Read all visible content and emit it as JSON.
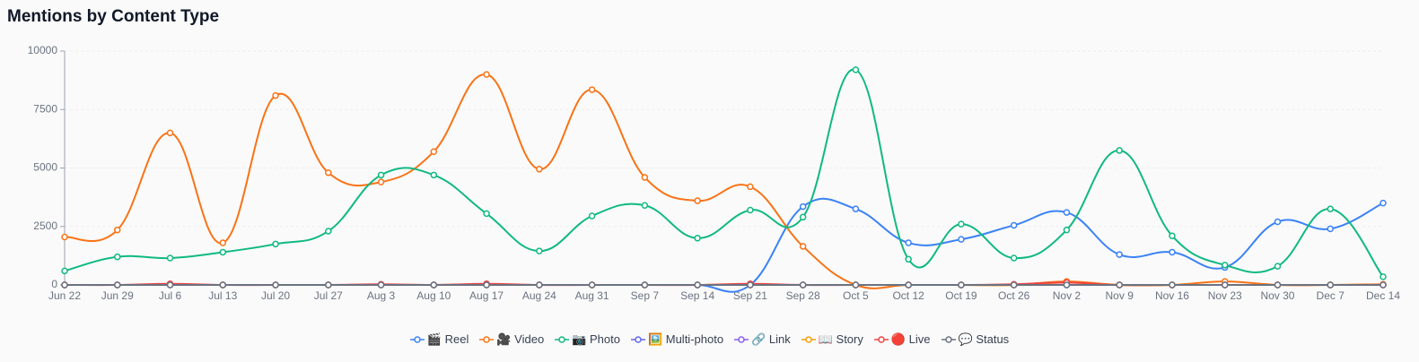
{
  "chart_data": {
    "type": "line",
    "title": "Mentions by Content Type",
    "categories": [
      "Jun 22",
      "Jun 29",
      "Jul 6",
      "Jul 13",
      "Jul 20",
      "Jul 27",
      "Aug 3",
      "Aug 10",
      "Aug 17",
      "Aug 24",
      "Aug 31",
      "Sep 7",
      "Sep 14",
      "Sep 21",
      "Sep 28",
      "Oct 5",
      "Oct 12",
      "Oct 19",
      "Oct 26",
      "Nov 2",
      "Nov 9",
      "Nov 16",
      "Nov 23",
      "Nov 30",
      "Dec 7",
      "Dec 14"
    ],
    "ylim": [
      0,
      10000
    ],
    "yticks": [
      0,
      2500,
      5000,
      7500,
      10000
    ],
    "grid": true,
    "legend": "bottom",
    "series": [
      {
        "name": "🎬 Reel",
        "color": "#3b82f6",
        "values": [
          0,
          0,
          0,
          0,
          0,
          0,
          0,
          0,
          0,
          0,
          0,
          0,
          0,
          0,
          3350,
          3250,
          1800,
          1950,
          2550,
          3100,
          1300,
          1400,
          750,
          2700,
          2400,
          3500
        ]
      },
      {
        "name": "🎥 Video",
        "color": "#f97316",
        "values": [
          2050,
          2350,
          6500,
          1800,
          8100,
          4800,
          4400,
          5700,
          9000,
          4950,
          8350,
          4600,
          3600,
          4200,
          1650,
          0,
          0,
          0,
          0,
          150,
          0,
          0,
          150,
          0,
          0,
          30
        ]
      },
      {
        "name": "📷 Photo",
        "color": "#10b981",
        "values": [
          600,
          1200,
          1150,
          1400,
          1750,
          2300,
          4700,
          4700,
          3050,
          1450,
          2950,
          3400,
          2000,
          3200,
          2900,
          9200,
          1100,
          2600,
          1150,
          2350,
          5750,
          2100,
          850,
          800,
          3250,
          350
        ]
      },
      {
        "name": "🖼️ Multi-photo",
        "color": "#6366f1",
        "values": [
          0,
          0,
          0,
          0,
          0,
          0,
          0,
          0,
          0,
          0,
          0,
          0,
          0,
          0,
          0,
          0,
          0,
          0,
          0,
          0,
          0,
          0,
          0,
          0,
          0,
          0
        ]
      },
      {
        "name": "🔗 Link",
        "color": "#8b5cf6",
        "values": [
          0,
          0,
          0,
          0,
          0,
          0,
          0,
          0,
          0,
          0,
          0,
          0,
          0,
          0,
          0,
          0,
          0,
          0,
          0,
          0,
          0,
          0,
          0,
          0,
          0,
          0
        ]
      },
      {
        "name": "📖 Story",
        "color": "#f59e0b",
        "values": [
          0,
          0,
          0,
          0,
          0,
          0,
          0,
          0,
          0,
          0,
          0,
          0,
          0,
          0,
          0,
          0,
          0,
          0,
          0,
          100,
          0,
          0,
          0,
          0,
          0,
          0
        ]
      },
      {
        "name": "🔴 Live",
        "color": "#ef4444",
        "values": [
          0,
          0,
          50,
          0,
          0,
          0,
          30,
          0,
          50,
          0,
          0,
          0,
          0,
          50,
          0,
          0,
          0,
          0,
          30,
          100,
          0,
          0,
          0,
          0,
          0,
          0
        ]
      },
      {
        "name": "💬 Status",
        "color": "#6b7280",
        "values": [
          0,
          0,
          0,
          0,
          0,
          0,
          0,
          0,
          0,
          0,
          0,
          0,
          0,
          0,
          0,
          0,
          0,
          0,
          0,
          0,
          0,
          0,
          0,
          0,
          0,
          0
        ]
      }
    ]
  }
}
